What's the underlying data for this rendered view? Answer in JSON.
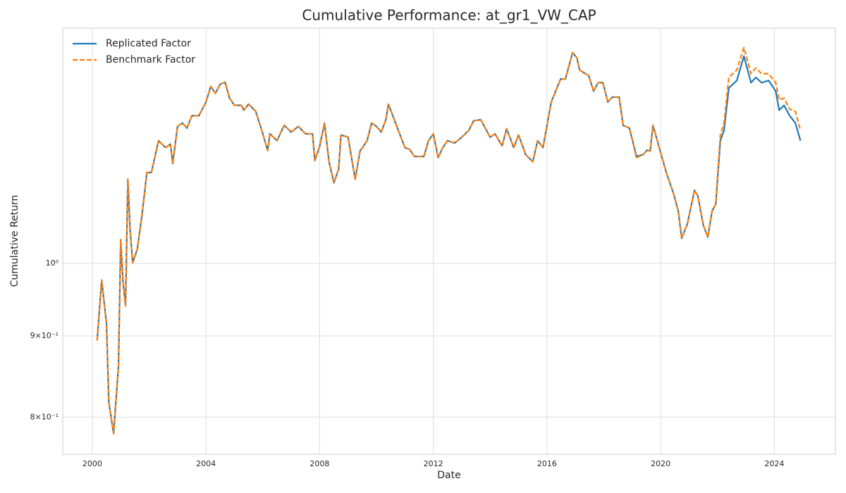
{
  "chart_data": {
    "type": "line",
    "title": "Cumulative Performance: at_gr1_VW_CAP",
    "xlabel": "Date",
    "ylabel": "Cumulative Return",
    "yscale": "log",
    "grid": true,
    "legend": "upper left",
    "xlim": [
      1998.96,
      2026.15
    ],
    "xticks": [
      2000,
      2004,
      2008,
      2012,
      2016,
      2020,
      2024
    ],
    "ylim": [
      0.758,
      1.407
    ],
    "yticks": [
      {
        "value": 0.8,
        "label": "8×10⁻¹"
      },
      {
        "value": 0.9,
        "label": "9×10⁻¹"
      },
      {
        "value": 1,
        "label": "10⁰"
      }
    ],
    "x": [
      2000.17,
      2000.33,
      2000.5,
      2000.58,
      2000.75,
      2000.92,
      2001.0,
      2001.08,
      2001.17,
      2001.25,
      2001.33,
      2001.42,
      2001.58,
      2001.75,
      2001.92,
      2002.08,
      2002.33,
      2002.58,
      2002.75,
      2002.83,
      2003.0,
      2003.17,
      2003.33,
      2003.5,
      2003.75,
      2004.0,
      2004.17,
      2004.33,
      2004.5,
      2004.67,
      2004.83,
      2005.0,
      2005.25,
      2005.33,
      2005.5,
      2005.75,
      2006.0,
      2006.17,
      2006.25,
      2006.5,
      2006.75,
      2007.0,
      2007.25,
      2007.5,
      2007.75,
      2007.83,
      2008.0,
      2008.17,
      2008.33,
      2008.5,
      2008.67,
      2008.75,
      2009.0,
      2009.25,
      2009.42,
      2009.67,
      2009.83,
      2010.0,
      2010.17,
      2010.33,
      2010.42,
      2010.67,
      2011.0,
      2011.17,
      2011.33,
      2011.5,
      2011.67,
      2011.83,
      2012.0,
      2012.17,
      2012.33,
      2012.5,
      2012.75,
      2013.0,
      2013.25,
      2013.42,
      2013.67,
      2014.0,
      2014.17,
      2014.42,
      2014.58,
      2014.83,
      2015.0,
      2015.25,
      2015.5,
      2015.67,
      2015.86,
      2016.15,
      2016.48,
      2016.65,
      2016.9,
      2017.05,
      2017.15,
      2017.47,
      2017.64,
      2017.8,
      2017.97,
      2018.14,
      2018.3,
      2018.54,
      2018.68,
      2018.9,
      2019.15,
      2019.38,
      2019.53,
      2019.63,
      2019.73,
      2019.95,
      2020.2,
      2020.45,
      2020.62,
      2020.74,
      2020.94,
      2021.19,
      2021.31,
      2021.5,
      2021.66,
      2021.81,
      2021.94,
      2022.1,
      2022.23,
      2022.4,
      2022.68,
      2022.93,
      2023.18,
      2023.35,
      2023.55,
      2023.8,
      2024.05,
      2024.17,
      2024.34,
      2024.54,
      2024.74,
      2024.92
    ],
    "series": [
      {
        "name": "Replicated Factor",
        "color": "#1f77b4",
        "linestyle": "solid",
        "values": [
          0.894,
          0.976,
          0.916,
          0.818,
          0.781,
          0.861,
          1.035,
          0.974,
          0.94,
          1.13,
          1.051,
          1.001,
          1.02,
          1.073,
          1.141,
          1.141,
          1.195,
          1.183,
          1.189,
          1.156,
          1.22,
          1.226,
          1.217,
          1.239,
          1.239,
          1.264,
          1.293,
          1.28,
          1.297,
          1.301,
          1.271,
          1.258,
          1.258,
          1.249,
          1.26,
          1.247,
          1.207,
          1.178,
          1.207,
          1.195,
          1.222,
          1.21,
          1.22,
          1.207,
          1.207,
          1.161,
          1.185,
          1.226,
          1.159,
          1.124,
          1.147,
          1.205,
          1.201,
          1.13,
          1.177,
          1.195,
          1.226,
          1.22,
          1.21,
          1.232,
          1.26,
          1.226,
          1.183,
          1.18,
          1.168,
          1.168,
          1.168,
          1.195,
          1.207,
          1.166,
          1.183,
          1.195,
          1.191,
          1.201,
          1.213,
          1.23,
          1.232,
          1.201,
          1.207,
          1.186,
          1.216,
          1.183,
          1.205,
          1.171,
          1.159,
          1.195,
          1.183,
          1.264,
          1.307,
          1.307,
          1.358,
          1.348,
          1.324,
          1.313,
          1.284,
          1.3,
          1.3,
          1.264,
          1.273,
          1.273,
          1.222,
          1.217,
          1.168,
          1.171,
          1.179,
          1.177,
          1.222,
          1.183,
          1.141,
          1.107,
          1.079,
          1.037,
          1.059,
          1.112,
          1.103,
          1.057,
          1.039,
          1.079,
          1.09,
          1.195,
          1.213,
          1.29,
          1.304,
          1.351,
          1.3,
          1.31,
          1.3,
          1.304,
          1.284,
          1.249,
          1.258,
          1.239,
          1.226,
          1.195
        ]
      },
      {
        "name": "Benchmark Factor",
        "color": "#ff7f0e",
        "linestyle": "dashed",
        "values": [
          0.894,
          0.976,
          0.916,
          0.818,
          0.781,
          0.861,
          1.035,
          0.974,
          0.94,
          1.13,
          1.051,
          1.001,
          1.02,
          1.073,
          1.141,
          1.141,
          1.195,
          1.183,
          1.189,
          1.156,
          1.22,
          1.226,
          1.217,
          1.239,
          1.239,
          1.264,
          1.293,
          1.28,
          1.297,
          1.301,
          1.271,
          1.258,
          1.258,
          1.249,
          1.26,
          1.247,
          1.207,
          1.178,
          1.207,
          1.195,
          1.222,
          1.21,
          1.22,
          1.207,
          1.207,
          1.161,
          1.185,
          1.226,
          1.159,
          1.124,
          1.147,
          1.205,
          1.201,
          1.13,
          1.177,
          1.195,
          1.226,
          1.22,
          1.21,
          1.232,
          1.26,
          1.226,
          1.183,
          1.18,
          1.168,
          1.168,
          1.168,
          1.195,
          1.207,
          1.166,
          1.183,
          1.195,
          1.191,
          1.201,
          1.213,
          1.23,
          1.232,
          1.201,
          1.207,
          1.186,
          1.216,
          1.183,
          1.205,
          1.171,
          1.159,
          1.195,
          1.183,
          1.264,
          1.307,
          1.307,
          1.358,
          1.348,
          1.324,
          1.313,
          1.284,
          1.3,
          1.3,
          1.264,
          1.273,
          1.273,
          1.222,
          1.217,
          1.166,
          1.171,
          1.179,
          1.177,
          1.222,
          1.183,
          1.141,
          1.107,
          1.079,
          1.037,
          1.059,
          1.112,
          1.103,
          1.057,
          1.039,
          1.079,
          1.09,
          1.205,
          1.226,
          1.31,
          1.324,
          1.368,
          1.317,
          1.328,
          1.317,
          1.317,
          1.3,
          1.268,
          1.271,
          1.251,
          1.247,
          1.213
        ]
      }
    ]
  }
}
